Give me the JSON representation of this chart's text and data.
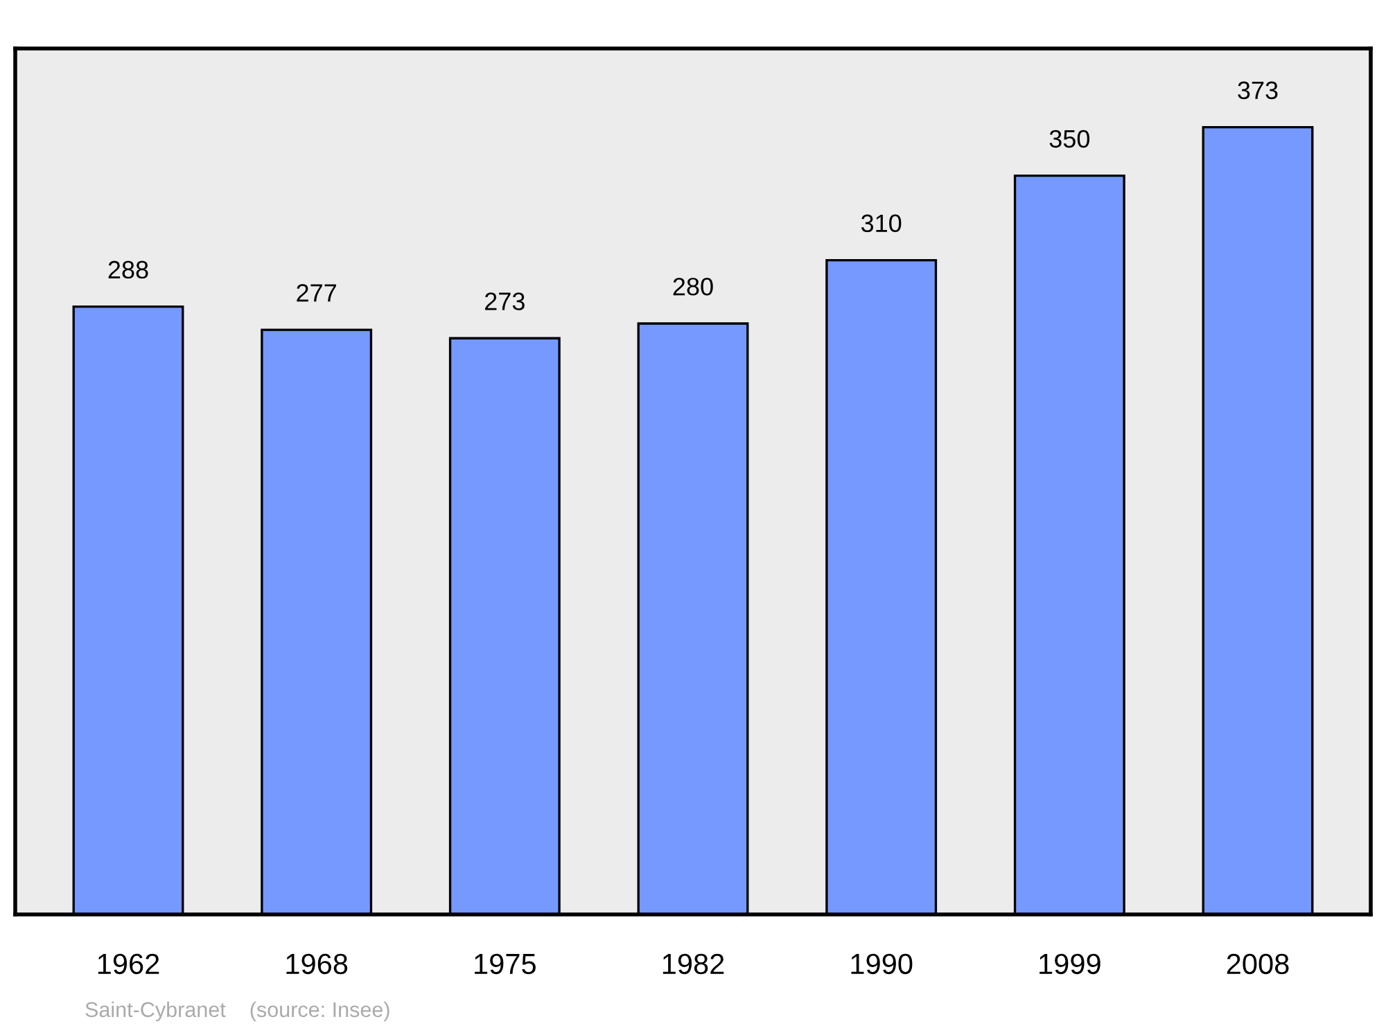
{
  "chart_data": {
    "type": "bar",
    "categories": [
      "1962",
      "1968",
      "1975",
      "1982",
      "1990",
      "1999",
      "2008"
    ],
    "values": [
      288,
      277,
      273,
      280,
      310,
      350,
      373
    ],
    "color": "#7599ff",
    "data_labels": true,
    "grid": false,
    "legend": false,
    "tick_labels": "x",
    "annotations": [
      "Saint-Cybranet    (source: Insee)"
    ]
  }
}
